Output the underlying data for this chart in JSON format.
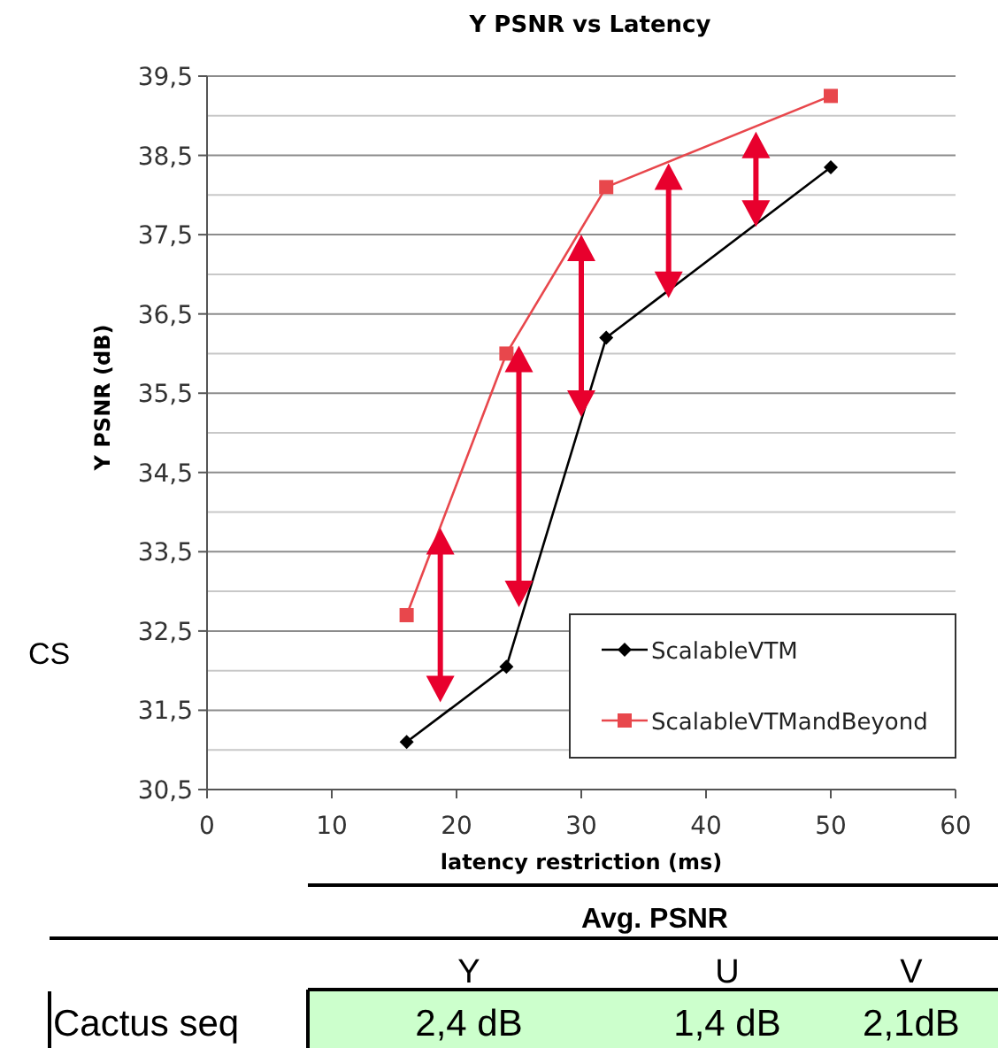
{
  "chart_data": {
    "type": "line",
    "title": "Y PSNR vs Latency",
    "xlabel": "latency restriction (ms)",
    "ylabel": "Y PSNR (dB)",
    "series": [
      {
        "name": "ScalableVTM",
        "color": "#000000",
        "marker": "diamond",
        "x": [
          16,
          24,
          32,
          50
        ],
        "values": [
          31.1,
          32.05,
          36.2,
          38.35
        ]
      },
      {
        "name": "ScalableVTMandBeyond",
        "color": "#e8474c",
        "marker": "square",
        "x": [
          16,
          24,
          32,
          50
        ],
        "values": [
          32.7,
          36.0,
          38.1,
          39.25
        ]
      }
    ],
    "xlim": [
      0,
      60
    ],
    "xticks": [
      0,
      10,
      20,
      30,
      40,
      50,
      60
    ],
    "ylim": [
      30.5,
      39.5
    ],
    "yticks": [
      {
        "value": 30.5,
        "label": "30,5"
      },
      {
        "value": 31,
        "label": null
      },
      {
        "value": 31.5,
        "label": "31,5"
      },
      {
        "value": 32,
        "label": null
      },
      {
        "value": 32.5,
        "label": "32,5"
      },
      {
        "value": 33,
        "label": null
      },
      {
        "value": 33.5,
        "label": "33,5"
      },
      {
        "value": 34,
        "label": null
      },
      {
        "value": 34.5,
        "label": "34,5"
      },
      {
        "value": 35,
        "label": null
      },
      {
        "value": 35.5,
        "label": "35,5"
      },
      {
        "value": 36,
        "label": null
      },
      {
        "value": 36.5,
        "label": "36,5"
      },
      {
        "value": 37,
        "label": null
      },
      {
        "value": 37.5,
        "label": "37,5"
      },
      {
        "value": 38,
        "label": null
      },
      {
        "value": 38.5,
        "label": "38,5"
      },
      {
        "value": 39,
        "label": null
      },
      {
        "value": 39.5,
        "label": "39,5"
      }
    ],
    "grid": "y",
    "legend": "bottom right",
    "line_style": "solid",
    "annotations": [
      "CS",
      "Avg. PSNR",
      "Y",
      "U",
      "V",
      "Cactus seq",
      "2,4 dB",
      "1,4 dB",
      "2,1dB"
    ]
  }
}
